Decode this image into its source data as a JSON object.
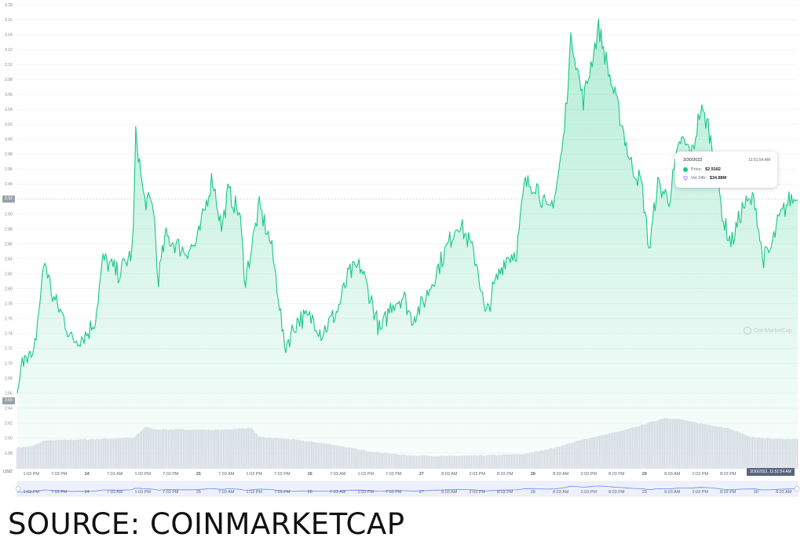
{
  "chart_data": {
    "type": "area",
    "currency_label": "USD",
    "ylim": [
      2.56,
      3.18
    ],
    "y_ticks": [
      "3.18",
      "3.16",
      "3.14",
      "3.12",
      "3.10",
      "3.08",
      "3.06",
      "3.04",
      "3.02",
      "3.00",
      "2.98",
      "2.96",
      "2.94",
      "2.92",
      "2.90",
      "2.88",
      "2.86",
      "2.84",
      "2.82",
      "2.80",
      "2.78",
      "2.76",
      "2.74",
      "2.72",
      "2.70",
      "2.68",
      "2.66",
      "2.64",
      "2.62",
      "2.60",
      "2.58"
    ],
    "x_ticks": [
      "1:03 PM",
      "7:03 PM",
      "24",
      "7:03 AM",
      "1:03 PM",
      "7:03 PM",
      "25",
      "7:03 AM",
      "1:03 PM",
      "7:03 PM",
      "26",
      "7:03 AM",
      "1:03 PM",
      "7:03 PM",
      "27",
      "8:03 AM",
      "2:03 PM",
      "8:03 PM",
      "28",
      "8:03 AM",
      "2:03 PM",
      "8:03 PM",
      "29",
      "8:03 AM",
      "2:03 PM",
      "8:03 PM",
      "30",
      "8:03 AM"
    ],
    "nav_ticks": [
      "1:03 PM",
      "7:03 PM",
      "24",
      "7:03 AM",
      "1:03 PM",
      "7:03 PM",
      "25",
      "7:03 AM",
      "1:03 PM",
      "7:03 PM",
      "26",
      "7:03 AM",
      "1:03 PM",
      "7:03 PM",
      "27",
      "8:03 AM",
      "2:03 PM",
      "8:03 PM",
      "28",
      "8:03 AM",
      "2:03 PM",
      "8:03 PM",
      "29",
      "8:03 AM",
      "2:03 PM",
      "8:03 PM",
      "30",
      "8:03 AM"
    ],
    "price_anchors": [
      [
        0,
        2.66
      ],
      [
        0.01,
        2.72
      ],
      [
        0.02,
        2.7
      ],
      [
        0.035,
        2.84
      ],
      [
        0.045,
        2.79
      ],
      [
        0.06,
        2.76
      ],
      [
        0.07,
        2.73
      ],
      [
        0.09,
        2.74
      ],
      [
        0.1,
        2.76
      ],
      [
        0.11,
        2.84
      ],
      [
        0.13,
        2.82
      ],
      [
        0.148,
        2.85
      ],
      [
        0.152,
        3.01
      ],
      [
        0.162,
        2.92
      ],
      [
        0.175,
        2.91
      ],
      [
        0.18,
        2.81
      ],
      [
        0.19,
        2.87
      ],
      [
        0.215,
        2.85
      ],
      [
        0.23,
        2.86
      ],
      [
        0.25,
        2.95
      ],
      [
        0.262,
        2.88
      ],
      [
        0.27,
        2.93
      ],
      [
        0.285,
        2.9
      ],
      [
        0.292,
        2.81
      ],
      [
        0.31,
        2.91
      ],
      [
        0.325,
        2.86
      ],
      [
        0.335,
        2.79
      ],
      [
        0.342,
        2.72
      ],
      [
        0.36,
        2.76
      ],
      [
        0.38,
        2.76
      ],
      [
        0.39,
        2.74
      ],
      [
        0.41,
        2.77
      ],
      [
        0.425,
        2.82
      ],
      [
        0.44,
        2.83
      ],
      [
        0.455,
        2.78
      ],
      [
        0.465,
        2.74
      ],
      [
        0.48,
        2.78
      ],
      [
        0.495,
        2.79
      ],
      [
        0.505,
        2.76
      ],
      [
        0.52,
        2.78
      ],
      [
        0.54,
        2.83
      ],
      [
        0.565,
        2.89
      ],
      [
        0.58,
        2.86
      ],
      [
        0.59,
        2.83
      ],
      [
        0.6,
        2.76
      ],
      [
        0.61,
        2.8
      ],
      [
        0.625,
        2.84
      ],
      [
        0.64,
        2.85
      ],
      [
        0.65,
        2.94
      ],
      [
        0.665,
        2.94
      ],
      [
        0.68,
        2.9
      ],
      [
        0.69,
        2.93
      ],
      [
        0.7,
        3.0
      ],
      [
        0.71,
        3.14
      ],
      [
        0.725,
        3.05
      ],
      [
        0.745,
        3.15
      ],
      [
        0.76,
        3.08
      ],
      [
        0.775,
        3.02
      ],
      [
        0.785,
        2.97
      ],
      [
        0.8,
        2.94
      ],
      [
        0.81,
        2.85
      ],
      [
        0.82,
        2.94
      ],
      [
        0.835,
        2.92
      ],
      [
        0.85,
        3.0
      ],
      [
        0.865,
        2.98
      ],
      [
        0.875,
        3.04
      ],
      [
        0.885,
        3.02
      ],
      [
        0.895,
        2.96
      ],
      [
        0.905,
        2.89
      ],
      [
        0.915,
        2.86
      ],
      [
        0.93,
        2.91
      ],
      [
        0.945,
        2.92
      ],
      [
        0.955,
        2.84
      ],
      [
        0.965,
        2.85
      ],
      [
        0.975,
        2.89
      ],
      [
        0.99,
        2.92
      ],
      [
        1,
        2.918
      ]
    ],
    "volume_anchors": [
      [
        0,
        0.3
      ],
      [
        0.02,
        0.32
      ],
      [
        0.035,
        0.4
      ],
      [
        0.1,
        0.42
      ],
      [
        0.15,
        0.44
      ],
      [
        0.165,
        0.6
      ],
      [
        0.175,
        0.56
      ],
      [
        0.26,
        0.55
      ],
      [
        0.3,
        0.58
      ],
      [
        0.31,
        0.45
      ],
      [
        0.35,
        0.42
      ],
      [
        0.4,
        0.35
      ],
      [
        0.45,
        0.25
      ],
      [
        0.5,
        0.19
      ],
      [
        0.55,
        0.18
      ],
      [
        0.6,
        0.19
      ],
      [
        0.65,
        0.21
      ],
      [
        0.69,
        0.3
      ],
      [
        0.72,
        0.4
      ],
      [
        0.78,
        0.55
      ],
      [
        0.83,
        0.72
      ],
      [
        0.85,
        0.7
      ],
      [
        0.87,
        0.65
      ],
      [
        0.91,
        0.58
      ],
      [
        0.94,
        0.45
      ],
      [
        0.97,
        0.42
      ],
      [
        1,
        0.42
      ]
    ],
    "current_price_tag": "2.92",
    "min_price_tag": "2.65",
    "time_tag": "3/30/2022, 11:51:54 AM",
    "tooltip": {
      "date": "3/30/2022",
      "time": "11:51:54 AM",
      "price_label": "Price:",
      "price_value": "$2.9182",
      "vol_label": "Vol 24h:",
      "vol_value": "$34.88M"
    },
    "colors": {
      "line": "#16c784",
      "fill_top": "#16c784",
      "volume": "#d9dce6",
      "nav": "#6188ff"
    },
    "watermark": "CoinMarketCap",
    "caption": "SOURCE: COINMARKETCAP"
  }
}
